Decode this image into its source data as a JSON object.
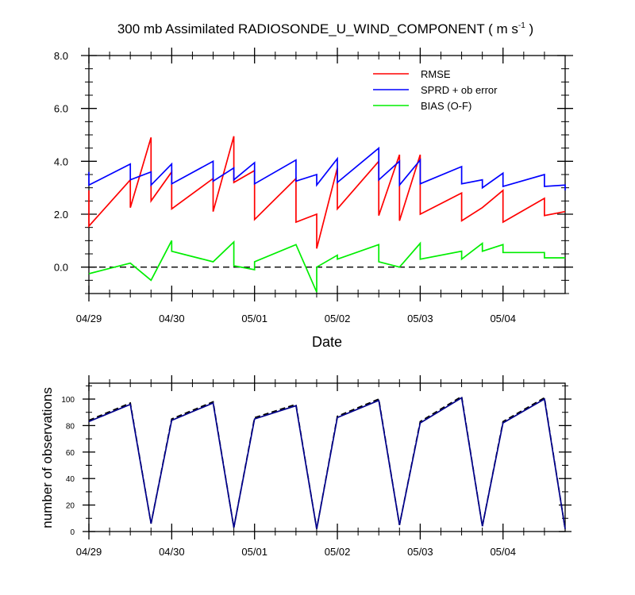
{
  "title_main": "300 mb Assimilated RADIOSONDE_U_WIND_COMPONENT ( m s",
  "title_sup": "-1",
  "title_end": " )",
  "colors": {
    "rmse": "#ff0000",
    "sprd": "#0000ff",
    "bias": "#00ee00",
    "zero": "#000000",
    "obs_possible": "#000000",
    "obs_used": "#00008b"
  },
  "chart_data": [
    {
      "type": "line",
      "x_unit": "days since 04/29 00Z",
      "xlabel": "Date",
      "xlim": [
        0,
        5.75
      ],
      "ylim": [
        -1.0,
        8.0
      ],
      "y_ticks": [
        "8.0",
        "6.0",
        "4.0",
        "2.0",
        "0.0"
      ],
      "y_tick_values": [
        8,
        6,
        4,
        2,
        0
      ],
      "x_tick_labels": [
        "04/29",
        "04/30",
        "05/01",
        "05/02",
        "05/03",
        "05/04"
      ],
      "x_tick_values": [
        0,
        1,
        2,
        3,
        4,
        5
      ],
      "legend": [
        "RMSE",
        "SPRD + ob error",
        "BIAS (O-F)"
      ],
      "zero_line": true,
      "series": [
        {
          "name": "RMSE",
          "points": [
            [
              0,
              2.9
            ],
            [
              0,
              1.55
            ],
            [
              0.5,
              3.3
            ],
            [
              0.5,
              2.25
            ],
            [
              0.75,
              4.9
            ],
            [
              0.75,
              2.5
            ],
            [
              1,
              3.6
            ],
            [
              1,
              2.2
            ],
            [
              1.5,
              3.35
            ],
            [
              1.5,
              2.1
            ],
            [
              1.75,
              4.95
            ],
            [
              1.75,
              3.2
            ],
            [
              2,
              3.65
            ],
            [
              2,
              1.8
            ],
            [
              2.5,
              3.35
            ],
            [
              2.5,
              1.7
            ],
            [
              2.75,
              2.0
            ],
            [
              2.75,
              0.7
            ],
            [
              3,
              3.75
            ],
            [
              3,
              2.2
            ],
            [
              3.5,
              4.0
            ],
            [
              3.5,
              1.95
            ],
            [
              3.75,
              4.25
            ],
            [
              3.75,
              1.75
            ],
            [
              4,
              4.25
            ],
            [
              4,
              2.0
            ],
            [
              4.5,
              2.8
            ],
            [
              4.5,
              1.75
            ],
            [
              4.75,
              2.25
            ],
            [
              5,
              2.9
            ],
            [
              5,
              1.7
            ],
            [
              5.5,
              2.6
            ],
            [
              5.5,
              1.95
            ],
            [
              5.75,
              2.1
            ]
          ]
        },
        {
          "name": "SPRD + ob error",
          "points": [
            [
              0,
              3.6
            ],
            [
              0,
              3.1
            ],
            [
              0.5,
              3.9
            ],
            [
              0.5,
              3.3
            ],
            [
              0.75,
              3.6
            ],
            [
              0.75,
              3.1
            ],
            [
              1,
              3.9
            ],
            [
              1,
              3.15
            ],
            [
              1.5,
              4.0
            ],
            [
              1.5,
              3.25
            ],
            [
              1.75,
              3.75
            ],
            [
              1.75,
              3.3
            ],
            [
              2,
              3.95
            ],
            [
              2,
              3.15
            ],
            [
              2.5,
              4.05
            ],
            [
              2.5,
              3.25
            ],
            [
              2.75,
              3.5
            ],
            [
              2.75,
              3.1
            ],
            [
              3,
              4.1
            ],
            [
              3,
              3.2
            ],
            [
              3.5,
              4.5
            ],
            [
              3.5,
              3.3
            ],
            [
              3.75,
              4.0
            ],
            [
              3.75,
              3.1
            ],
            [
              4,
              4.05
            ],
            [
              4,
              3.15
            ],
            [
              4.5,
              3.8
            ],
            [
              4.5,
              3.15
            ],
            [
              4.75,
              3.3
            ],
            [
              4.75,
              3.0
            ],
            [
              5,
              3.55
            ],
            [
              5,
              3.05
            ],
            [
              5.5,
              3.5
            ],
            [
              5.5,
              3.05
            ],
            [
              5.75,
              3.1
            ],
            [
              5.75,
              2.9
            ]
          ]
        },
        {
          "name": "BIAS (O-F)",
          "points": [
            [
              0,
              -0.25
            ],
            [
              0.5,
              0.15
            ],
            [
              0.75,
              -0.5
            ],
            [
              1,
              1.0
            ],
            [
              1,
              0.6
            ],
            [
              1.5,
              0.2
            ],
            [
              1.75,
              0.95
            ],
            [
              1.75,
              0.05
            ],
            [
              2,
              -0.1
            ],
            [
              2,
              0.2
            ],
            [
              2.5,
              0.85
            ],
            [
              2.75,
              -0.95
            ],
            [
              2.75,
              0.0
            ],
            [
              3,
              0.45
            ],
            [
              3,
              0.3
            ],
            [
              3.5,
              0.85
            ],
            [
              3.5,
              0.2
            ],
            [
              3.75,
              0.0
            ],
            [
              4,
              0.9
            ],
            [
              4,
              0.3
            ],
            [
              4.5,
              0.6
            ],
            [
              4.5,
              0.3
            ],
            [
              4.75,
              0.9
            ],
            [
              4.75,
              0.6
            ],
            [
              5,
              0.85
            ],
            [
              5,
              0.55
            ],
            [
              5.5,
              0.55
            ],
            [
              5.5,
              0.35
            ],
            [
              5.75,
              0.35
            ]
          ]
        }
      ]
    },
    {
      "type": "line",
      "ylabel": "number of observations",
      "xlim": [
        0,
        5.75
      ],
      "ylim": [
        0,
        112
      ],
      "y_tick_values": [
        0,
        20,
        40,
        60,
        80,
        100
      ],
      "y_ticks": [
        "0",
        "20",
        "40",
        "60",
        "80",
        "100"
      ],
      "x_tick_labels": [
        "04/29",
        "04/30",
        "05/01",
        "05/02",
        "05/03",
        "05/04"
      ],
      "x_tick_values": [
        0,
        1,
        2,
        3,
        4,
        5
      ],
      "series": [
        {
          "style": "dashed",
          "points": [
            [
              0,
              84
            ],
            [
              0.5,
              97
            ],
            [
              0.75,
              6
            ],
            [
              1,
              85
            ],
            [
              1.5,
              98
            ],
            [
              1.75,
              3
            ],
            [
              2,
              86
            ],
            [
              2.5,
              96
            ],
            [
              2.75,
              2
            ],
            [
              3,
              87
            ],
            [
              3.5,
              100
            ],
            [
              3.75,
              5
            ],
            [
              4,
              83
            ],
            [
              4.5,
              102
            ],
            [
              4.75,
              4
            ],
            [
              5,
              83
            ],
            [
              5.5,
              101
            ],
            [
              5.75,
              2
            ]
          ]
        },
        {
          "style": "solid",
          "points": [
            [
              0,
              83
            ],
            [
              0.5,
              96
            ],
            [
              0.75,
              6
            ],
            [
              1,
              84
            ],
            [
              1.5,
              97
            ],
            [
              1.75,
              3
            ],
            [
              2,
              85
            ],
            [
              2.5,
              95
            ],
            [
              2.75,
              2
            ],
            [
              3,
              86
            ],
            [
              3.5,
              99
            ],
            [
              3.75,
              5
            ],
            [
              4,
              82
            ],
            [
              4.5,
              101
            ],
            [
              4.75,
              4
            ],
            [
              5,
              82
            ],
            [
              5.5,
              100
            ],
            [
              5.75,
              2
            ]
          ]
        }
      ]
    }
  ]
}
